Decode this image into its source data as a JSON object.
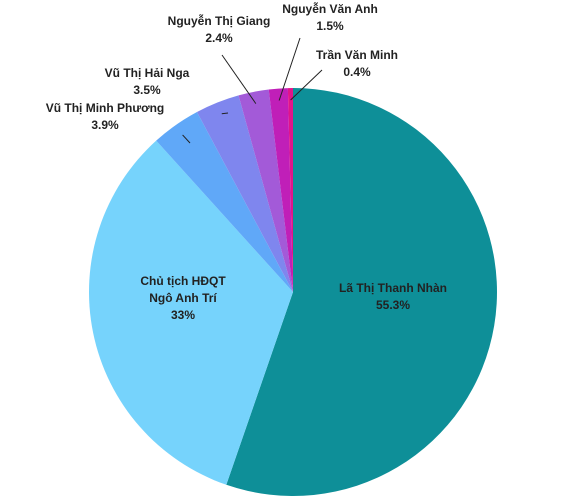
{
  "chart_data": {
    "type": "pie",
    "categories": [
      "Lã Thị Thanh Nhàn",
      "Chủ tịch HĐQT\nNgô Anh Trí",
      "Vũ Thị Minh Phương",
      "Vũ Thị Hải Nga",
      "Nguyễn Thị Giang",
      "Nguyễn Văn Anh",
      "Trần Văn Minh"
    ],
    "values": [
      55.3,
      33,
      3.9,
      3.5,
      2.4,
      1.5,
      0.4
    ],
    "value_labels": [
      "55.3%",
      "33%",
      "3.9%",
      "3.5%",
      "2.4%",
      "1.5%",
      "0.4%"
    ],
    "colors": [
      "#0e8f98",
      "#76d3fc",
      "#60a8f8",
      "#7f86ee",
      "#a35ad8",
      "#c01fb8",
      "#e2148a"
    ]
  }
}
